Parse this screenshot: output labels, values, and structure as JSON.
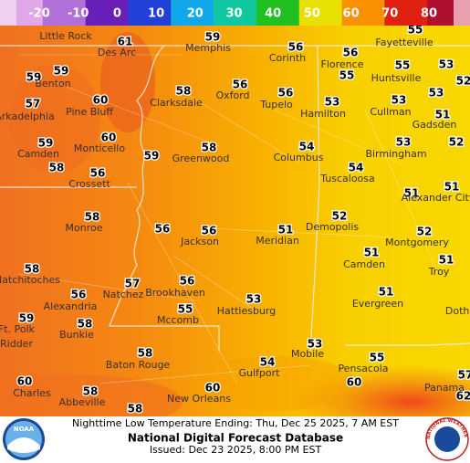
{
  "legend": {
    "stops": [
      {
        "value": -20,
        "color": "#e0a8e8"
      },
      {
        "value": -10,
        "color": "#b070d8"
      },
      {
        "value": 0,
        "color": "#6820b8"
      },
      {
        "value": 10,
        "color": "#2040d8"
      },
      {
        "value": 20,
        "color": "#10a8e8"
      },
      {
        "value": 30,
        "color": "#10c8a0"
      },
      {
        "value": 40,
        "color": "#20c020"
      },
      {
        "value": 50,
        "color": "#e8e000"
      },
      {
        "value": 60,
        "color": "#f89000"
      },
      {
        "value": 70,
        "color": "#e02010"
      },
      {
        "value": 80,
        "color": "#b01030"
      }
    ]
  },
  "temperatures": [
    55,
    59,
    61,
    56,
    56,
    55,
    53,
    59,
    59,
    55,
    53,
    52,
    56,
    56,
    58,
    60,
    57,
    53,
    53,
    51,
    60,
    53,
    52,
    59,
    58,
    54,
    59,
    58,
    56,
    54,
    51,
    51,
    58,
    52,
    56,
    56,
    51,
    52,
    51,
    51,
    58,
    57,
    56,
    56,
    53,
    51,
    55,
    59,
    58,
    58,
    53,
    55,
    54,
    60,
    60,
    60,
    58,
    57,
    62,
    58
  ],
  "cities": [
    "Little Rock",
    "Des Arc",
    "Memphis",
    "Corinth",
    "Fayetteville",
    "Florence",
    "Benton",
    "Huntsville",
    "Pine Bluff",
    "Clarksdale",
    "Oxford",
    "Tupelo",
    "Hamilton",
    "Cullman",
    "Gadsden",
    "Arkadelphia",
    "Monticello",
    "Greenwood",
    "Columbus",
    "Birmingham",
    "Camden",
    "Crossett",
    "Tuscaloosa",
    "Alexander City",
    "Monroe",
    "Demopolis",
    "Jackson",
    "Meridian",
    "Montgomery",
    "Camden",
    "Troy",
    "Natchitoches",
    "Natchez",
    "Brookhaven",
    "Alexandria",
    "Evergreen",
    "Hattiesburg",
    "Mccomb",
    "Ft. Polk",
    "Bunkie",
    "Ridder",
    "Dothan",
    "Baton Rouge",
    "Mobile",
    "Pensacola",
    "Gulfport",
    "Charles",
    "Abbeville",
    "New Orleans",
    "Panama"
  ],
  "footer": {
    "product": "Nighttime Low Temperature Ending: Thu, Dec 25 2025, 7 AM EST",
    "database": "National Digital Forecast Database",
    "issued": "Issued: Dec 23 2025, 8:00 PM EST"
  },
  "logos": {
    "left": "NOAA",
    "right": "NATIONAL WEATHER SERVICE"
  }
}
